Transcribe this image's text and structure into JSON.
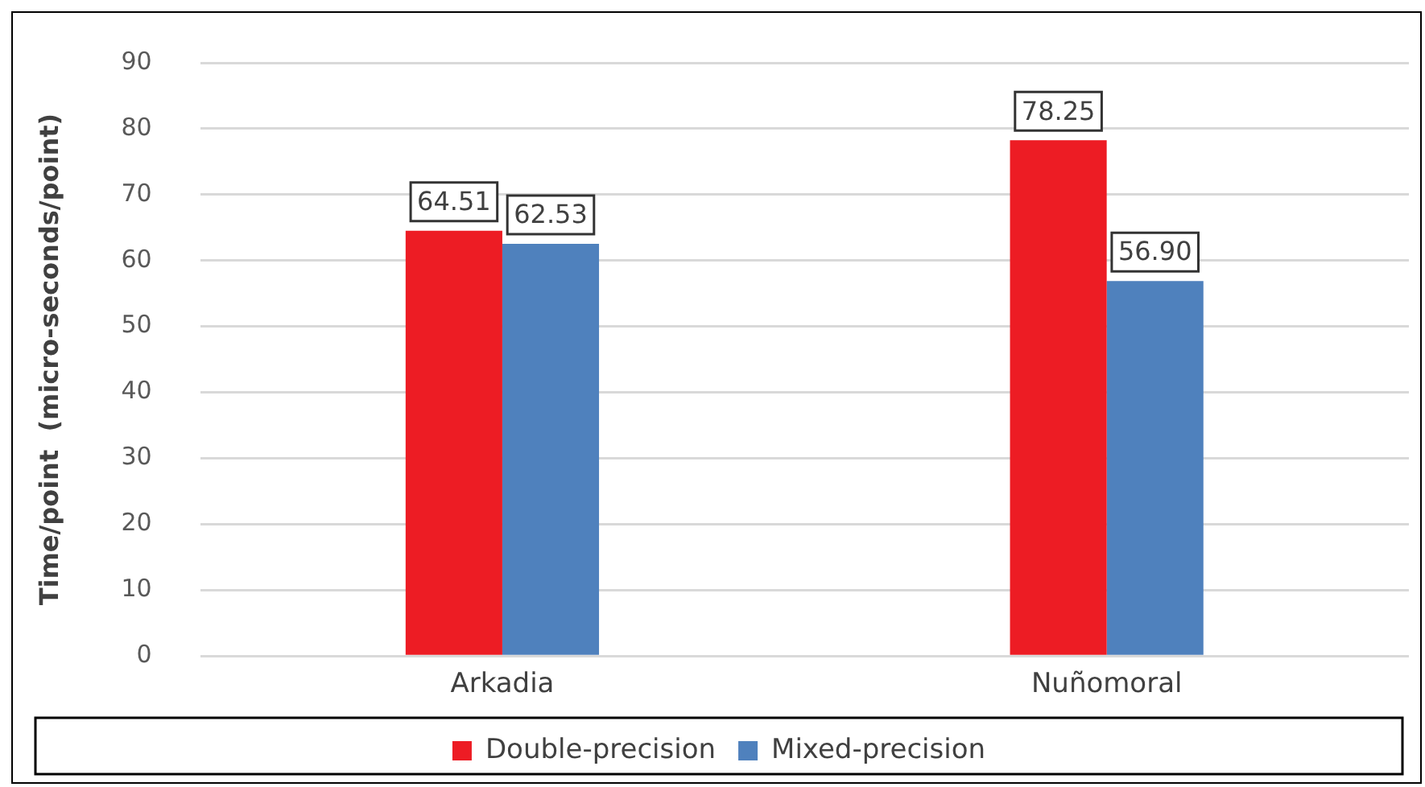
{
  "chart_data": {
    "type": "bar",
    "ylabel": "Time/point  (micro-seconds/point)",
    "categories": [
      "Arkadia",
      "Nuñomoral"
    ],
    "series": [
      {
        "name": "Double-precision",
        "color": "#ed1c24",
        "values": [
          64.51,
          78.25
        ]
      },
      {
        "name": "Mixed-precision",
        "color": "#4f81bd",
        "values": [
          62.53,
          56.9
        ]
      }
    ],
    "value_labels": [
      [
        "64.51",
        "78.25"
      ],
      [
        "62.53",
        "56.90"
      ]
    ],
    "ylim": [
      0,
      90
    ],
    "yticks": [
      0,
      10,
      20,
      30,
      40,
      50,
      60,
      70,
      80,
      90
    ],
    "grid": "y",
    "legend": "bottom"
  }
}
